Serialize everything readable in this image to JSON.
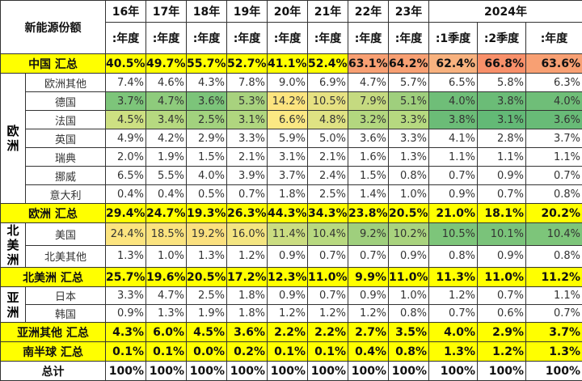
{
  "header": {
    "title": "新能源份额",
    "years": [
      "16年",
      "17年",
      "18年",
      "19年",
      "20年",
      "21年",
      "22年",
      "23年"
    ],
    "year_2024": "2024年",
    "periods": [
      ":年度",
      ":年度",
      ":年度",
      ":年度",
      ":年度",
      ":年度",
      ":年度",
      ":年度",
      ":1季度",
      ":2季度",
      ":年度"
    ]
  },
  "rows": {
    "china_total": {
      "label": "中国 汇总",
      "values": [
        "40.5%",
        "49.7%",
        "55.7%",
        "52.7%",
        "41.1%",
        "52.4%",
        "63.1%",
        "64.2%",
        "62.4%",
        "66.8%",
        "63.6%"
      ],
      "colors": [
        "#ffff00",
        "#ffff00",
        "#ffff00",
        "#ffff00",
        "#ffff00",
        "#ffff00",
        "#f8a073",
        "#f8a073",
        "#f8b27f",
        "#f8906a",
        "#f8a073"
      ]
    },
    "europe": {
      "region": "欧洲",
      "countries": [
        {
          "label": "欧洲其他",
          "values": [
            "7.4%",
            "4.6%",
            "4.3%",
            "7.8%",
            "9.0%",
            "6.9%",
            "4.7%",
            "5.7%",
            "6.5%",
            "5.8%",
            "6.3%"
          ],
          "colors": [
            "#fff",
            "#fff",
            "#fff",
            "#fff",
            "#fff",
            "#fff",
            "#fff",
            "#fff",
            "#fff",
            "#fff",
            "#fff"
          ]
        },
        {
          "label": "德国",
          "values": [
            "3.7%",
            "4.7%",
            "3.6%",
            "5.3%",
            "14.2%",
            "10.5%",
            "7.9%",
            "5.1%",
            "4.0%",
            "3.8%",
            "4.0%"
          ],
          "colors": [
            "#7dc57a",
            "#8ecb7c",
            "#7cc47a",
            "#a8d27e",
            "#fce47f",
            "#e6e182",
            "#c5da80",
            "#9fcf7d",
            "#6fbe78",
            "#6bbc77",
            "#6fbe78"
          ]
        },
        {
          "label": "法国",
          "values": [
            "4.5%",
            "3.4%",
            "2.5%",
            "3.1%",
            "6.6%",
            "4.8%",
            "3.2%",
            "3.3%",
            "3.8%",
            "3.1%",
            "3.6%"
          ],
          "colors": [
            "#cde082",
            "#b6d980",
            "#a2d27e",
            "#b0d67f",
            "#fbe883",
            "#dfe283",
            "#b3d77f",
            "#b6d980",
            "#6bbc77",
            "#63b976",
            "#68bb77"
          ]
        },
        {
          "label": "英国",
          "values": [
            "4.9%",
            "4.2%",
            "2.9%",
            "3.3%",
            "5.9%",
            "5.0%",
            "3.6%",
            "3.3%",
            "4.1%",
            "2.8%",
            "3.7%"
          ],
          "colors": [
            "#fff",
            "#fff",
            "#fff",
            "#fff",
            "#fff",
            "#fff",
            "#fff",
            "#fff",
            "#fff",
            "#fff",
            "#fff"
          ]
        },
        {
          "label": "瑞典",
          "values": [
            "2.0%",
            "1.9%",
            "1.5%",
            "2.1%",
            "3.1%",
            "2.1%",
            "1.6%",
            "1.3%",
            "1.1%",
            "1.1%",
            "1.1%"
          ],
          "colors": [
            "#fff",
            "#fff",
            "#fff",
            "#fff",
            "#fff",
            "#fff",
            "#fff",
            "#fff",
            "#fff",
            "#fff",
            "#fff"
          ]
        },
        {
          "label": "挪威",
          "values": [
            "6.5%",
            "5.5%",
            "4.0%",
            "3.9%",
            "3.7%",
            "2.4%",
            "1.5%",
            "0.8%",
            "0.7%",
            "0.9%",
            "0.7%"
          ],
          "colors": [
            "#fff",
            "#fff",
            "#fff",
            "#fff",
            "#fff",
            "#fff",
            "#fff",
            "#fff",
            "#fff",
            "#fff",
            "#fff"
          ]
        },
        {
          "label": "意大利",
          "values": [
            "0.4%",
            "0.4%",
            "0.5%",
            "0.7%",
            "1.8%",
            "2.5%",
            "1.4%",
            "1.0%",
            "0.9%",
            "0.7%",
            "0.8%"
          ],
          "colors": [
            "#fff",
            "#fff",
            "#fff",
            "#fff",
            "#fff",
            "#fff",
            "#fff",
            "#fff",
            "#fff",
            "#fff",
            "#fff"
          ]
        }
      ],
      "total": {
        "label": "欧洲 汇总",
        "values": [
          "29.4%",
          "24.7%",
          "19.3%",
          "26.3%",
          "44.3%",
          "34.3%",
          "23.8%",
          "20.5%",
          "21.0%",
          "18.1%",
          "20.2%"
        ]
      }
    },
    "north_america": {
      "region": "北美洲",
      "countries": [
        {
          "label": "美国",
          "values": [
            "24.4%",
            "18.5%",
            "19.2%",
            "16.0%",
            "11.4%",
            "10.4%",
            "9.2%",
            "10.2%",
            "10.5%",
            "10.1%",
            "10.4%"
          ],
          "colors": [
            "#fce47f",
            "#fbe37f",
            "#fbe07f",
            "#f4e581",
            "#cbdd81",
            "#b8d980",
            "#9fcf7d",
            "#a9d37e",
            "#7dc57a",
            "#7ac37a",
            "#7dc57a"
          ]
        },
        {
          "label": "北美其他",
          "values": [
            "1.3%",
            "1.0%",
            "1.3%",
            "1.2%",
            "0.9%",
            "0.7%",
            "0.7%",
            "0.9%",
            "0.8%",
            "0.9%",
            "0.8%"
          ],
          "colors": [
            "#fff",
            "#fff",
            "#fff",
            "#fff",
            "#fff",
            "#fff",
            "#fff",
            "#fff",
            "#fff",
            "#fff",
            "#fff"
          ]
        }
      ],
      "total": {
        "label": "北美洲 汇总",
        "values": [
          "25.7%",
          "19.6%",
          "20.5%",
          "17.2%",
          "12.3%",
          "11.0%",
          "9.9%",
          "11.0%",
          "11.3%",
          "11.0%",
          "11.2%"
        ]
      }
    },
    "asia": {
      "region": "亚洲",
      "countries": [
        {
          "label": "日本",
          "values": [
            "3.3%",
            "4.7%",
            "2.5%",
            "1.8%",
            "0.9%",
            "0.7%",
            "0.9%",
            "1.0%",
            "1.2%",
            "0.7%",
            "1.1%"
          ],
          "colors": [
            "#fff",
            "#fff",
            "#fff",
            "#fff",
            "#fff",
            "#fff",
            "#fff",
            "#fff",
            "#fff",
            "#fff",
            "#fff"
          ]
        },
        {
          "label": "韩国",
          "values": [
            "0.9%",
            "1.3%",
            "1.9%",
            "1.8%",
            "1.2%",
            "1.2%",
            "1.2%",
            "0.8%",
            "0.7%",
            "0.6%",
            "0.7%"
          ],
          "colors": [
            "#fff",
            "#fff",
            "#fff",
            "#fff",
            "#fff",
            "#fff",
            "#fff",
            "#fff",
            "#fff",
            "#fff",
            "#fff"
          ]
        }
      ],
      "total": {
        "label": "亚洲其他 汇总",
        "values": [
          "4.3%",
          "6.0%",
          "4.5%",
          "3.6%",
          "2.2%",
          "2.2%",
          "2.7%",
          "3.5%",
          "4.0%",
          "2.9%",
          "3.7%"
        ]
      }
    },
    "southern_total": {
      "label": "南半球 汇总",
      "values": [
        "0.1%",
        "0.1%",
        "0.0%",
        "0.2%",
        "0.1%",
        "0.1%",
        "0.4%",
        "0.8%",
        "1.3%",
        "1.2%",
        "1.3%"
      ]
    },
    "grand_total": {
      "label": "总计",
      "values": [
        "100%",
        "100%",
        "100%",
        "100%",
        "100%",
        "100%",
        "100%",
        "100%",
        "100%",
        "100%",
        "100%"
      ]
    }
  }
}
